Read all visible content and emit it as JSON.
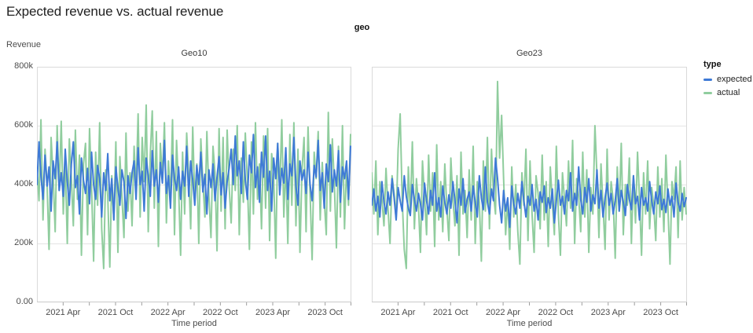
{
  "title": "Expected revenue vs. actual revenue",
  "facet_header": "geo",
  "y_axis_title": "Revenue",
  "legend": {
    "title": "type",
    "items": [
      {
        "label": "expected",
        "color": "#3e7ad6"
      },
      {
        "label": "actual",
        "color": "#90cd9e"
      }
    ]
  },
  "colors": {
    "expected": "#3e7ad6",
    "actual": "#90cd9e",
    "grid": "#e4e4e4",
    "border": "#dadada",
    "axis_line": "#c9c9c9",
    "tick": "#9e9e9e",
    "label": "#4c4c4c"
  },
  "chart_data": [
    {
      "type": "line",
      "facet": "Geo10",
      "xlabel": "Time period",
      "ylabel": "Revenue",
      "unit": "revenue in thousands (k)",
      "ylim_k": [
        0,
        800
      ],
      "x_domain_weeks": 156,
      "x_range": [
        "2021 Jan",
        "2023 Dec"
      ],
      "y_ticks": [
        {
          "v": 0,
          "label": "0.00"
        },
        {
          "v": 200,
          "label": "200k"
        },
        {
          "v": 400,
          "label": "400k"
        },
        {
          "v": 600,
          "label": "600k"
        },
        {
          "v": 800,
          "label": "800k"
        }
      ],
      "x_ticks": [
        {
          "week": 13,
          "label": "2021 Apr"
        },
        {
          "week": 26,
          "label": ""
        },
        {
          "week": 39,
          "label": "2021 Oct"
        },
        {
          "week": 52,
          "label": ""
        },
        {
          "week": 65,
          "label": "2022 Apr"
        },
        {
          "week": 78,
          "label": ""
        },
        {
          "week": 91,
          "label": "2022 Oct"
        },
        {
          "week": 104,
          "label": ""
        },
        {
          "week": 117,
          "label": "2023 Apr"
        },
        {
          "week": 130,
          "label": ""
        },
        {
          "week": 143,
          "label": "2023 Oct"
        },
        {
          "week": 156,
          "label": ""
        }
      ],
      "series": [
        {
          "name": "expected",
          "color": "#3e7ad6",
          "values_k": [
            400,
            545,
            430,
            350,
            500,
            395,
            460,
            310,
            480,
            420,
            545,
            380,
            440,
            360,
            520,
            410,
            330,
            470,
            545,
            390,
            430,
            300,
            490,
            415,
            370,
            455,
            335,
            510,
            400,
            350,
            465,
            420,
            290,
            440,
            380,
            505,
            345,
            420,
            280,
            460,
            390,
            330,
            450,
            410,
            285,
            430,
            370,
            440,
            480,
            350,
            525,
            400,
            445,
            310,
            490,
            430,
            360,
            515,
            395,
            450,
            340,
            475,
            405,
            550,
            370,
            430,
            320,
            500,
            420,
            380,
            460,
            350,
            445,
            395,
            530,
            360,
            480,
            415,
            330,
            465,
            400,
            510,
            375,
            435,
            300,
            450,
            390,
            470,
            345,
            425,
            495,
            365,
            440,
            320,
            410,
            455,
            520,
            400,
            565,
            430,
            480,
            370,
            545,
            415,
            350,
            500,
            440,
            570,
            390,
            460,
            340,
            510,
            425,
            565,
            380,
            445,
            310,
            490,
            420,
            540,
            365,
            455,
            405,
            525,
            350,
            470,
            430,
            560,
            395,
            330,
            480,
            415,
            450,
            370,
            510,
            400,
            345,
            465,
            425,
            550,
            380,
            440,
            320,
            470,
            410,
            535,
            375,
            450,
            395,
            515,
            340,
            460,
            420,
            480,
            350,
            530
          ]
        },
        {
          "name": "actual",
          "color": "#90cd9e",
          "values_k": [
            460,
            345,
            620,
            280,
            520,
            400,
            180,
            560,
            430,
            240,
            600,
            380,
            615,
            300,
            480,
            200,
            555,
            420,
            260,
            585,
            350,
            500,
            160,
            470,
            540,
            230,
            590,
            390,
            140,
            510,
            330,
            610,
            250,
            115,
            450,
            360,
            120,
            430,
            280,
            545,
            170,
            495,
            360,
            220,
            575,
            310,
            440,
            260,
            530,
            380,
            640,
            290,
            560,
            410,
            670,
            240,
            500,
            650,
            320,
            580,
            190,
            540,
            420,
            610,
            270,
            480,
            350,
            620,
            230,
            550,
            390,
            160,
            510,
            300,
            575,
            430,
            250,
            595,
            340,
            470,
            200,
            555,
            410,
            290,
            580,
            360,
            220,
            530,
            440,
            175,
            590,
            310,
            560,
            250,
            585,
            395,
            270,
            520,
            380,
            600,
            230,
            490,
            340,
            575,
            415,
            180,
            545,
            300,
            610,
            350,
            470,
            250,
            565,
            320,
            590,
            210,
            505,
            430,
            150,
            540,
            380,
            620,
            290,
            480,
            200,
            570,
            330,
            610,
            260,
            520,
            170,
            450,
            560,
            240,
            595,
            370,
            145,
            510,
            420,
            580,
            280,
            475,
            350,
            230,
            645,
            310,
            555,
            400,
            185,
            530,
            290,
            600,
            250,
            460,
            330,
            570
          ]
        }
      ]
    },
    {
      "type": "line",
      "facet": "Geo23",
      "xlabel": "Time period",
      "ylabel": "Revenue",
      "unit": "revenue in thousands (k)",
      "ylim_k": [
        0,
        800
      ],
      "x_domain_weeks": 156,
      "x_range": [
        "2021 Jan",
        "2023 Dec"
      ],
      "y_ticks": [
        {
          "v": 0,
          "label": "0.00"
        },
        {
          "v": 200,
          "label": "200k"
        },
        {
          "v": 400,
          "label": "400k"
        },
        {
          "v": 600,
          "label": "600k"
        },
        {
          "v": 800,
          "label": "800k"
        }
      ],
      "x_ticks": [
        {
          "week": 13,
          "label": "2021 Apr"
        },
        {
          "week": 26,
          "label": ""
        },
        {
          "week": 39,
          "label": "2021 Oct"
        },
        {
          "week": 52,
          "label": ""
        },
        {
          "week": 65,
          "label": "2022 Apr"
        },
        {
          "week": 78,
          "label": ""
        },
        {
          "week": 91,
          "label": "2022 Oct"
        },
        {
          "week": 104,
          "label": ""
        },
        {
          "week": 117,
          "label": "2023 Apr"
        },
        {
          "week": 130,
          "label": ""
        },
        {
          "week": 143,
          "label": "2023 Oct"
        },
        {
          "week": 156,
          "label": ""
        }
      ],
      "series": [
        {
          "name": "expected",
          "color": "#3e7ad6",
          "values_k": [
            330,
            385,
            310,
            360,
            290,
            410,
            340,
            300,
            375,
            330,
            420,
            355,
            280,
            390,
            345,
            310,
            430,
            360,
            320,
            295,
            400,
            350,
            310,
            370,
            335,
            280,
            405,
            345,
            300,
            380,
            330,
            440,
            310,
            355,
            290,
            395,
            340,
            300,
            365,
            320,
            410,
            345,
            270,
            385,
            330,
            420,
            305,
            350,
            375,
            310,
            395,
            340,
            290,
            430,
            355,
            315,
            460,
            340,
            300,
            385,
            345,
            490,
            420,
            330,
            270,
            380,
            310,
            355,
            255,
            395,
            335,
            300,
            370,
            320,
            410,
            345,
            290,
            360,
            330,
            400,
            310,
            350,
            280,
            375,
            340,
            395,
            305,
            355,
            320,
            385,
            270,
            345,
            415,
            330,
            360,
            300,
            380,
            345,
            440,
            310,
            370,
            330,
            460,
            350,
            300,
            390,
            340,
            420,
            310,
            365,
            335,
            450,
            320,
            380,
            290,
            355,
            405,
            330,
            370,
            300,
            345,
            420,
            310,
            380,
            340,
            295,
            400,
            350,
            315,
            430,
            335,
            360,
            280,
            390,
            330,
            355,
            310,
            410,
            345,
            300,
            375,
            335,
            395,
            315,
            350,
            305,
            385,
            330,
            360,
            290,
            405,
            340,
            310,
            370,
            325,
            355
          ]
        },
        {
          "name": "actual",
          "color": "#90cd9e",
          "values_k": [
            440,
            300,
            480,
            230,
            410,
            350,
            260,
            455,
            320,
            200,
            430,
            370,
            280,
            520,
            640,
            350,
            180,
            115,
            460,
            300,
            545,
            250,
            420,
            330,
            170,
            480,
            360,
            230,
            500,
            310,
            440,
            190,
            535,
            280,
            410,
            240,
            470,
            320,
            210,
            490,
            350,
            260,
            430,
            160,
            510,
            300,
            380,
            220,
            450,
            280,
            530,
            200,
            410,
            340,
            140,
            480,
            310,
            560,
            250,
            520,
            370,
            300,
            750,
            490,
            635,
            420,
            230,
            350,
            180,
            460,
            290,
            400,
            240,
            130,
            440,
            330,
            520,
            210,
            480,
            300,
            170,
            430,
            370,
            250,
            500,
            280,
            410,
            190,
            460,
            340,
            230,
            530,
            300,
            160,
            440,
            350,
            260,
            480,
            320,
            550,
            200,
            420,
            360,
            240,
            510,
            290,
            450,
            170,
            390,
            300,
            600,
            430,
            220,
            470,
            330,
            180,
            520,
            280,
            410,
            350,
            150,
            460,
            310,
            540,
            230,
            400,
            330,
            490,
            200,
            430,
            270,
            510,
            350,
            160,
            440,
            300,
            480,
            250,
            390,
            330,
            210,
            460,
            290,
            420,
            240,
            500,
            320,
            130,
            410,
            350,
            460,
            220,
            480,
            280,
            390,
            300
          ]
        }
      ]
    }
  ]
}
